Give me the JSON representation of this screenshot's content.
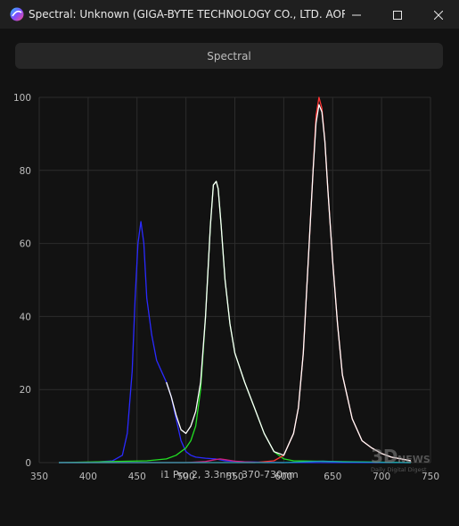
{
  "window": {
    "title": "Spectral: Unknown (GIGA-BYTE TECHNOLOGY CO., LTD. AORUS...",
    "icons": [
      "app-logo-icon",
      "minimize-icon",
      "maximize-icon",
      "close-icon"
    ]
  },
  "toolbar": {
    "spectral_label": "Spectral"
  },
  "caption": "i1 Pro 2, 3.3nm, 370-730nm",
  "watermark": {
    "line1": "3D NEWS",
    "line2": "Daily Digital Digest"
  },
  "colors": {
    "background": "#121212",
    "grid": "#2c2c2c",
    "blue": "#2a2aff",
    "green": "#22e022",
    "red": "#ff3333",
    "white": "#ffffff",
    "magenta": "#d0207a",
    "teal": "#1aa0b0"
  },
  "chart_data": {
    "type": "line",
    "xlim": [
      350,
      750
    ],
    "ylim": [
      0,
      100
    ],
    "xticks": [
      350,
      400,
      450,
      500,
      550,
      600,
      650,
      700,
      750
    ],
    "yticks": [
      0,
      20,
      40,
      60,
      80,
      100
    ],
    "grid": true,
    "series": [
      {
        "color": "blue",
        "x": [
          370,
          400,
          425,
          435,
          440,
          445,
          448,
          451,
          454,
          457,
          460,
          465,
          470,
          475,
          480,
          485,
          490,
          495,
          500,
          505,
          510,
          520,
          530,
          540,
          560,
          600,
          650,
          700,
          730
        ],
        "y": [
          0,
          0,
          0.5,
          2,
          8,
          25,
          45,
          60,
          66,
          60,
          45,
          35,
          28,
          25,
          22,
          18,
          12,
          6,
          3,
          2,
          1.5,
          1.2,
          1,
          0.5,
          0.2,
          0,
          0,
          0,
          0
        ]
      },
      {
        "color": "green",
        "x": [
          370,
          460,
          480,
          490,
          495,
          500,
          505,
          510,
          515,
          520,
          525,
          528,
          531,
          533,
          536,
          540,
          545,
          550,
          560,
          570,
          580,
          590,
          600,
          610,
          650,
          730
        ],
        "y": [
          0,
          0.5,
          1,
          2,
          3,
          4,
          6,
          10,
          20,
          40,
          65,
          76,
          77,
          75,
          65,
          50,
          38,
          30,
          22,
          15,
          8,
          3,
          1,
          0.5,
          0.3,
          0
        ],
        "note": ""
      },
      {
        "color": "red",
        "x": [
          370,
          570,
          590,
          600,
          610,
          615,
          620,
          625,
          630,
          633,
          636,
          639,
          642,
          645,
          650,
          655,
          660,
          670,
          680,
          690,
          700,
          710,
          720,
          730
        ],
        "y": [
          0,
          0,
          0.5,
          2,
          8,
          15,
          30,
          55,
          80,
          95,
          100,
          97,
          88,
          75,
          55,
          38,
          24,
          12,
          6,
          4,
          2.5,
          1.5,
          1,
          0.5
        ]
      },
      {
        "color": "white",
        "x": [
          480,
          485,
          490,
          495,
          500,
          505,
          510,
          515,
          520,
          525,
          528,
          531,
          533,
          536,
          540,
          545,
          550,
          560,
          570,
          580,
          590,
          600,
          610,
          615,
          620,
          625,
          630,
          633,
          636,
          639,
          642,
          645,
          650,
          655,
          660,
          670,
          680,
          690,
          700,
          710,
          720,
          730
        ],
        "y": [
          22,
          18,
          13,
          9,
          8,
          10,
          14,
          22,
          40,
          65,
          76,
          77,
          75,
          65,
          50,
          38,
          30,
          22,
          15,
          8,
          3,
          2,
          8,
          15,
          30,
          55,
          80,
          93,
          98,
          96,
          88,
          75,
          55,
          38,
          24,
          12,
          6,
          4,
          2.5,
          1.5,
          1,
          0.5
        ]
      },
      {
        "color": "magenta",
        "x": [
          370,
          500,
          520,
          530,
          535,
          540,
          550,
          560,
          580,
          600
        ],
        "y": [
          0,
          0,
          0.3,
          0.8,
          1,
          0.8,
          0.4,
          0.2,
          0,
          0
        ]
      },
      {
        "color": "teal",
        "x": [
          370,
          600,
          620,
          640,
          660,
          700,
          730
        ],
        "y": [
          0,
          0,
          0.2,
          0.4,
          0.2,
          0.1,
          0
        ]
      }
    ]
  }
}
